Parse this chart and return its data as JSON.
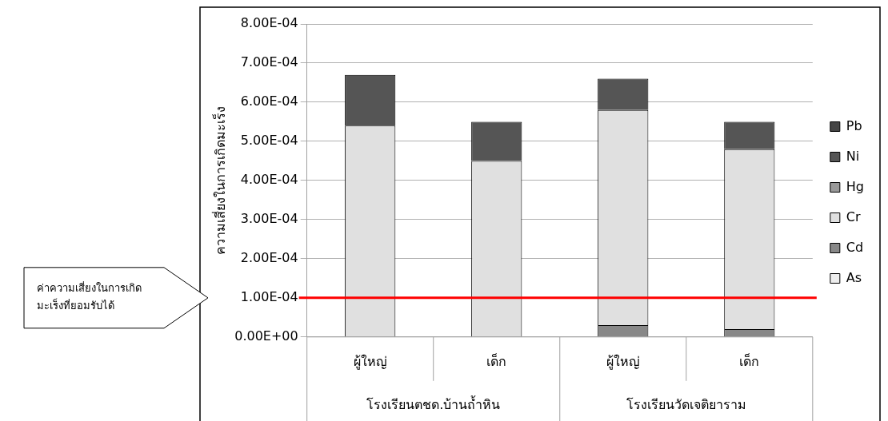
{
  "chart_data": {
    "type": "bar",
    "stacked": true,
    "ylabel": "ความเสี่ยงในการเกิดมะเร็ง",
    "categories": [
      "ผู้ใหญ่",
      "เด็ก",
      "ผู้ใหญ่",
      "เด็ก"
    ],
    "series": [
      {
        "name": "As",
        "color": "#eeeeee",
        "values": [
          0,
          0,
          0,
          0
        ]
      },
      {
        "name": "Cd",
        "color": "#888888",
        "values": [
          0,
          0,
          3e-05,
          2e-05
        ]
      },
      {
        "name": "Cr",
        "color": "#e0e0e0",
        "values": [
          0.00054,
          0.00045,
          0.00055,
          0.00046
        ]
      },
      {
        "name": "Hg",
        "color": "#999999",
        "values": [
          0,
          0,
          0,
          0
        ]
      },
      {
        "name": "Ni",
        "color": "#555555",
        "values": [
          0.00013,
          0.0001,
          8e-05,
          7e-05
        ]
      },
      {
        "name": "Pb",
        "color": "#444444",
        "values": [
          0,
          0,
          0,
          0
        ]
      }
    ],
    "ylim": [
      0,
      0.0008
    ],
    "yticks": [
      {
        "value": 0,
        "label": "0.00E+00"
      },
      {
        "value": 0.0001,
        "label": "1.00E-04"
      },
      {
        "value": 0.0002,
        "label": "2.00E-04"
      },
      {
        "value": 0.0003,
        "label": "3.00E-04"
      },
      {
        "value": 0.0004,
        "label": "4.00E-04"
      },
      {
        "value": 0.0005,
        "label": "5.00E-04"
      },
      {
        "value": 0.0006,
        "label": "6.00E-04"
      },
      {
        "value": 0.0007,
        "label": "7.00E-04"
      },
      {
        "value": 0.0008,
        "label": "8.00E-04"
      }
    ],
    "grid": "y",
    "legend": "right",
    "ref_lines": [
      {
        "axis": "y",
        "value": 0.0001,
        "color": "#ff0000"
      }
    ],
    "annotations": [
      "โรงเรียนตชด.บ้านถ้ำหิน",
      "โรงเรียนวัดเจติยาราม",
      "ค่าความเสี่ยงในการเกิด\nมะเร็งที่ยอมรับได้"
    ]
  }
}
